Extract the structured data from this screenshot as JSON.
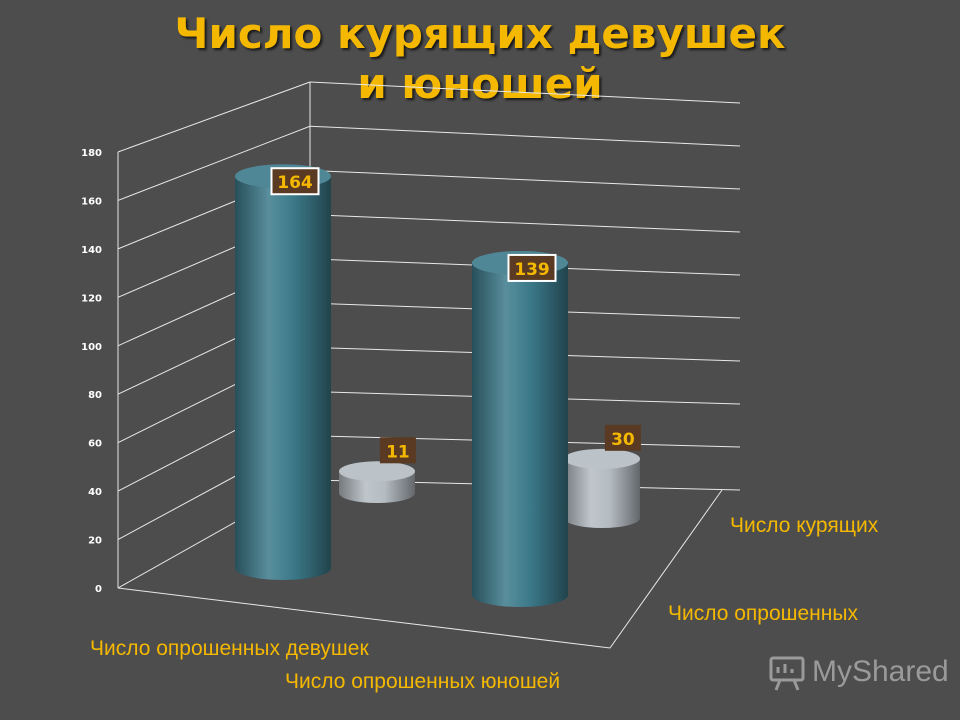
{
  "slide": {
    "title_line_1": "Число курящих девушек",
    "title_line_2": "и юношей",
    "watermark": "MyShared"
  },
  "colors": {
    "background": "#4d4d4d",
    "title": "#f5b800",
    "surveyed_series": "#3c7a8a",
    "smoking_series": "#b4bcc2",
    "category_text": "#f5b800",
    "label_box": "#5a3a22"
  },
  "chart_data": {
    "type": "bar",
    "style": "3d-cylinder",
    "title": "Число курящих девушек и юношей",
    "categories": [
      "Число опрошенных девушек",
      "Число опрошенных юношей"
    ],
    "series": [
      {
        "name": "Число опрошенных",
        "values": [
          164,
          139
        ],
        "color": "#3c7a8a"
      },
      {
        "name": "Число курящих",
        "values": [
          11,
          30
        ],
        "color": "#b4bcc2"
      }
    ],
    "ylim": [
      0,
      180
    ],
    "yticks": [
      0,
      20,
      40,
      60,
      80,
      100,
      120,
      140,
      160,
      180
    ],
    "grid": true,
    "data_labels": true
  }
}
